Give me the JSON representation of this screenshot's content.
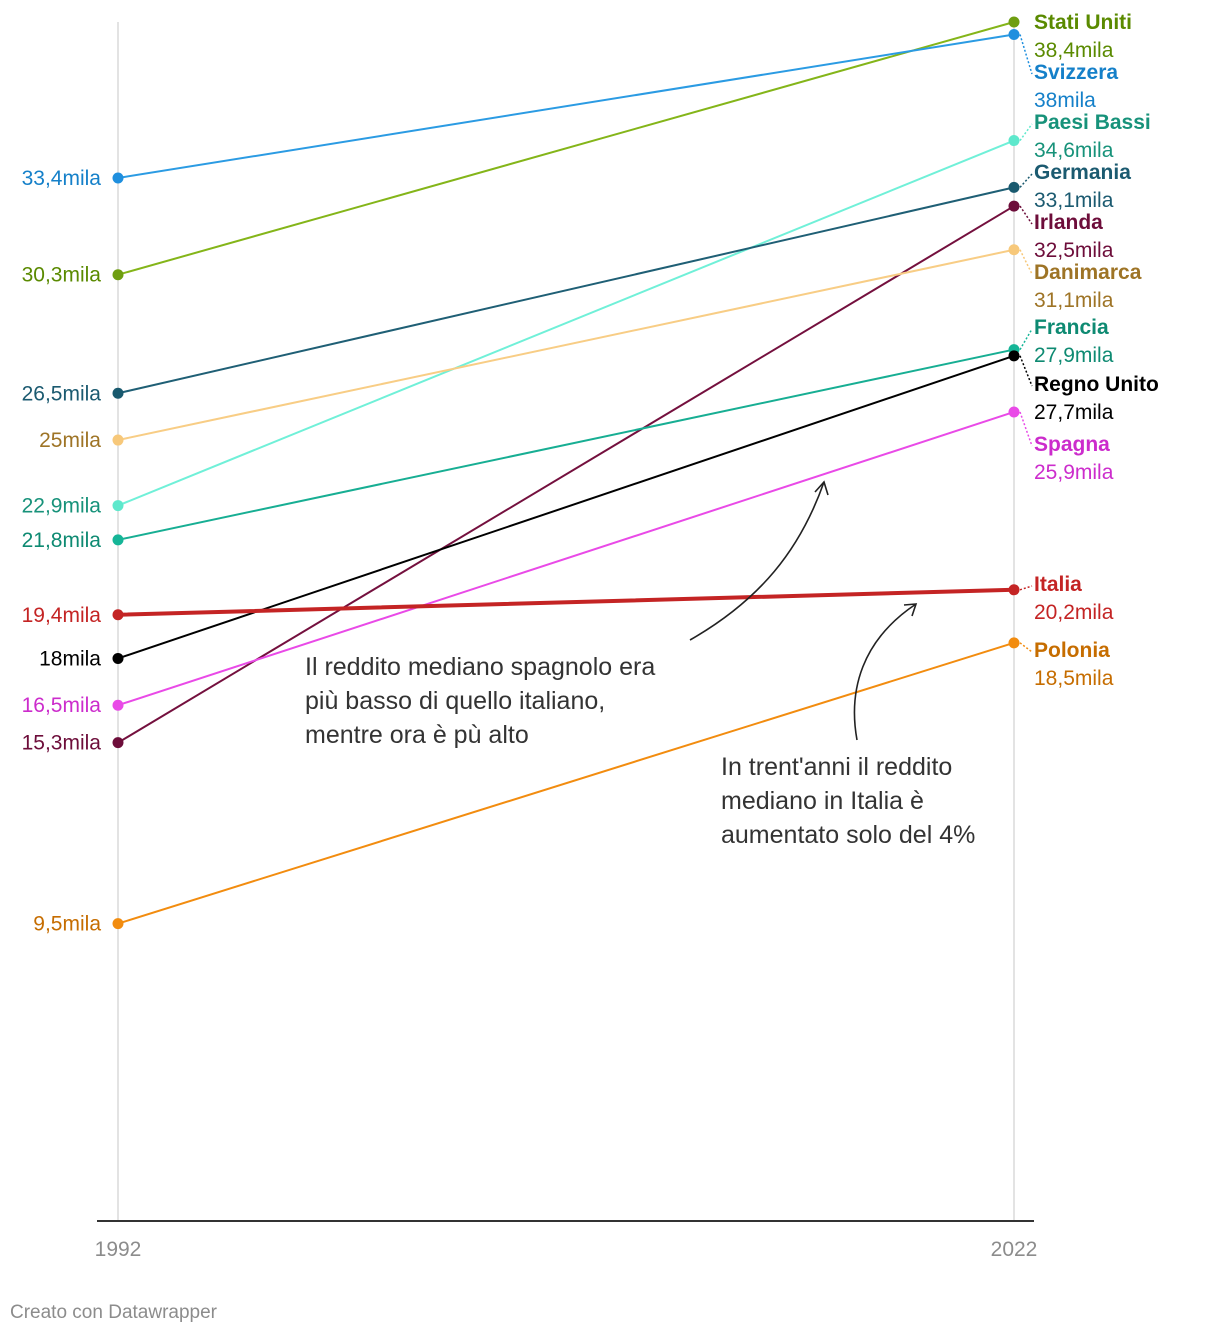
{
  "chart_data": {
    "type": "line",
    "title": "",
    "x": [
      "1992",
      "2022"
    ],
    "xlabel": "",
    "ylabel": "",
    "ylim": [
      0,
      38.4
    ],
    "grid": false,
    "series": [
      {
        "name": "Stati Uniti",
        "values": [
          30.3,
          38.4
        ],
        "start_label": "30,3mila",
        "end_label": "38,4mila",
        "color": "#6f9e11",
        "line_color": "#84b519",
        "label_color": "#5a8a00"
      },
      {
        "name": "Svizzera",
        "values": [
          33.4,
          38.0
        ],
        "start_label": "33,4mila",
        "end_label": "38mila",
        "color": "#1f8fde",
        "line_color": "#2b9be3",
        "label_color": "#1580c9"
      },
      {
        "name": "Paesi Bassi",
        "values": [
          22.9,
          34.6
        ],
        "start_label": "22,9mila",
        "end_label": "34,6mila",
        "color": "#5ee8cc",
        "line_color": "#70f0d8",
        "label_color": "#17927a"
      },
      {
        "name": "Germania",
        "values": [
          26.5,
          33.1
        ],
        "start_label": "26,5mila",
        "end_label": "33,1mila",
        "color": "#19596e",
        "line_color": "#1f5f75",
        "label_color": "#1b5a70"
      },
      {
        "name": "Irlanda",
        "values": [
          15.3,
          32.5
        ],
        "start_label": "15,3mila",
        "end_label": "32,5mila",
        "color": "#6d0d3a",
        "line_color": "#74103e",
        "label_color": "#6d0d3a"
      },
      {
        "name": "Danimarca",
        "values": [
          25.0,
          31.1
        ],
        "start_label": "25mila",
        "end_label": "31,1mila",
        "color": "#f7c87a",
        "line_color": "#f8cd85",
        "label_color": "#9e7426"
      },
      {
        "name": "Francia",
        "values": [
          21.8,
          27.9
        ],
        "start_label": "21,8mila",
        "end_label": "27,9mila",
        "color": "#15b597",
        "line_color": "#17ae93",
        "label_color": "#0e8a72"
      },
      {
        "name": "Regno Unito",
        "values": [
          18.0,
          27.7
        ],
        "start_label": "18mila",
        "end_label": "27,7mila",
        "color": "#000000",
        "line_color": "#000000",
        "label_color": "#000000"
      },
      {
        "name": "Spagna",
        "values": [
          16.5,
          25.9
        ],
        "start_label": "16,5mila",
        "end_label": "25,9mila",
        "color": "#e94ae7",
        "line_color": "#e94ae7",
        "label_color": "#cc2ccc"
      },
      {
        "name": "Italia",
        "values": [
          19.4,
          20.2
        ],
        "start_label": "19,4mila",
        "end_label": "20,2mila",
        "color": "#c42424",
        "line_color": "#c42424",
        "label_color": "#c42424"
      },
      {
        "name": "Polonia",
        "values": [
          9.5,
          18.5
        ],
        "start_label": "9,5mila",
        "end_label": "18,5mila",
        "color": "#f28c0f",
        "line_color": "#f28c0f",
        "label_color": "#c66d00"
      }
    ],
    "annotations": [
      {
        "name": "annotation-spagna",
        "lines": [
          "Il reddito mediano spagnolo era",
          "più basso di quello italiano,",
          "mentre ora è pù alto"
        ]
      },
      {
        "name": "annotation-italia",
        "lines": [
          "In trent'anni il reddito",
          "mediano in Italia è",
          "aumentato solo del 4%"
        ]
      }
    ]
  },
  "credit": "Creato con Datawrapper"
}
